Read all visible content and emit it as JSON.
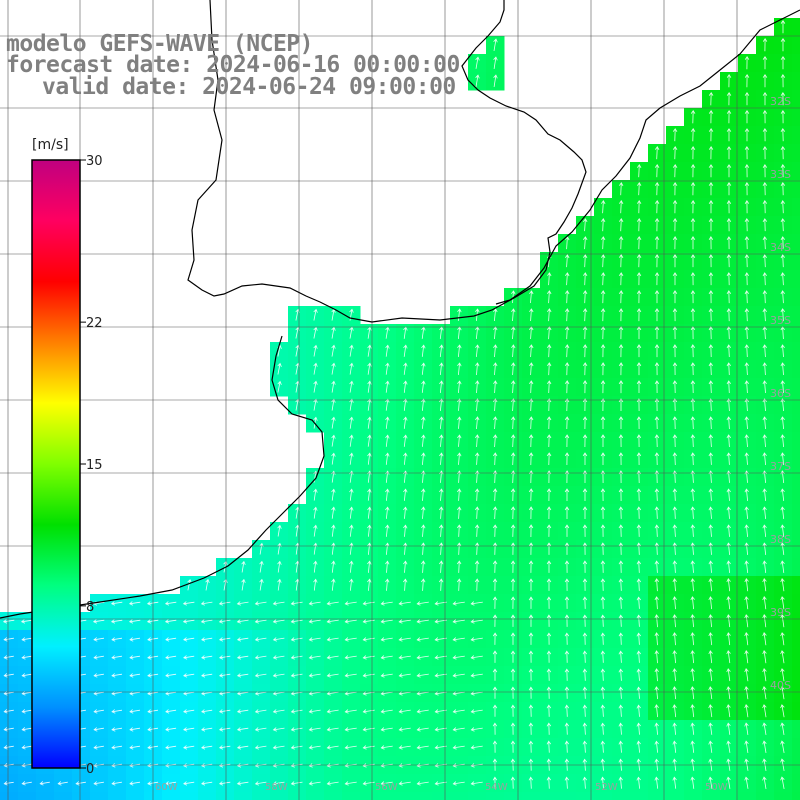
{
  "title": {
    "line1": "modelo GEFS-WAVE (NCEP)",
    "line2": "forecast date: 2024-06-16 00:00:00",
    "line3": "valid date: 2024-06-24 09:00:00"
  },
  "colorbar": {
    "unit": "[m/s]",
    "min": 0,
    "max": 30,
    "ticks": [
      30,
      22,
      15,
      8,
      0
    ],
    "stops": [
      "#0000ff",
      "#0090ff",
      "#00f0ff",
      "#00ff80",
      "#00e000",
      "#80ff00",
      "#ffff00",
      "#ff8000",
      "#ff0000",
      "#ff0060",
      "#c00080"
    ]
  },
  "grid": {
    "lat_labels": [
      "32S",
      "33S",
      "34S",
      "35S",
      "36S",
      "37S",
      "38S",
      "39S",
      "40S"
    ],
    "lon_labels": [
      "60W",
      "58W",
      "56W",
      "54W",
      "52W",
      "50W",
      "48W"
    ]
  },
  "colors": {
    "land": "#ffffff",
    "coastline": "#000000",
    "gridline": "#555555",
    "arrows": "#ffffff"
  }
}
